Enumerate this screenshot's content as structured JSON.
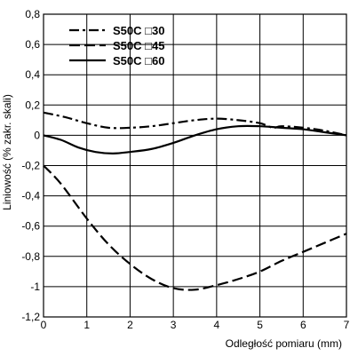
{
  "chart_data": {
    "type": "line",
    "xlabel": "Odległość pomiaru (mm)",
    "ylabel": "Liniowość (% zakr. skali)",
    "xlim": [
      0,
      7
    ],
    "ylim": [
      -1.2,
      0.8
    ],
    "x_ticks": [
      "0",
      "1",
      "2",
      "3",
      "4",
      "5",
      "6",
      "7"
    ],
    "y_ticks": [
      "0,8",
      "0,6",
      "0,4",
      "0,2",
      "0",
      "-0,2",
      "-0,4",
      "-0,6",
      "-0,8",
      "-1",
      "-1,2"
    ],
    "grid": true,
    "legend_position": "top-left",
    "series": [
      {
        "name": "S50C □30",
        "style": "dash-dot",
        "x": [
          0,
          0.5,
          1,
          1.5,
          2,
          2.5,
          3,
          3.5,
          4,
          4.5,
          5,
          5.3,
          5.5,
          6,
          6.5,
          7
        ],
        "y": [
          0.15,
          0.12,
          0.08,
          0.05,
          0.05,
          0.06,
          0.08,
          0.1,
          0.11,
          0.1,
          0.08,
          0.05,
          0.06,
          0.05,
          0.03,
          0.0
        ]
      },
      {
        "name": "S50C □45",
        "style": "dashed",
        "x": [
          0,
          0.4,
          1,
          1.5,
          2,
          2.5,
          3,
          3.5,
          4,
          4.5,
          5,
          5.5,
          6,
          6.5,
          7
        ],
        "y": [
          -0.2,
          -0.32,
          -0.55,
          -0.72,
          -0.85,
          -0.95,
          -1.01,
          -1.02,
          -0.99,
          -0.95,
          -0.9,
          -0.83,
          -0.77,
          -0.71,
          -0.65
        ]
      },
      {
        "name": "S50C □60",
        "style": "solid",
        "x": [
          0,
          0.4,
          0.8,
          1.2,
          1.6,
          2,
          2.5,
          3,
          3.5,
          4,
          4.5,
          5,
          5.5,
          6,
          6.5,
          7
        ],
        "y": [
          0.0,
          -0.03,
          -0.08,
          -0.11,
          -0.12,
          -0.11,
          -0.09,
          -0.05,
          0.0,
          0.04,
          0.06,
          0.06,
          0.05,
          0.04,
          0.02,
          0.0
        ]
      }
    ]
  }
}
